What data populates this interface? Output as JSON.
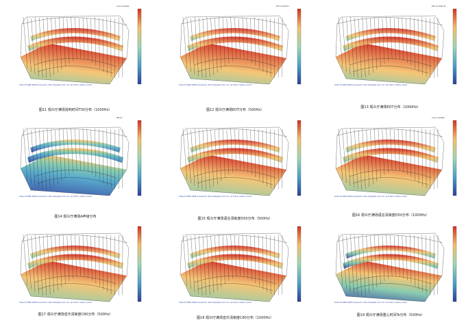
{
  "colors": {
    "credit": "#2b3da6",
    "wire": "#1a1a1a",
    "hot": "#d7301f",
    "warm": "#f4c16b",
    "mid": "#7fc8a9",
    "cool": "#4aa3c8",
    "cold": "#2c3f9e"
  },
  "panels": [
    {
      "caption": "图11 观众厅满场混响时间T30分布（1000Hz）",
      "legend_title": "Colour palette",
      "credit": "Odeon©1985-2008  Licensed to: SIAL Shanghai Arch. Sci. and Tech. Centre, China",
      "scheme": "warm-top"
    },
    {
      "caption": "图12 观众厅满场EDT分布（500Hz）",
      "legend_title": "EDT at 500 Hz",
      "credit": "Odeon©1985-2008  Licensed to: SIAL Shanghai Arch. Sci. and Tech. Centre, China",
      "scheme": "warm-top"
    },
    {
      "caption": "图13 观众厅满场EDT分布（1000Hz）",
      "legend_title": "EDT at 1000 Hz",
      "credit": "Odeon©1985-2008  Licensed to: SIAL Shanghai Arch. Sci. and Tech. Centre, China",
      "scheme": "warm-top"
    },
    {
      "caption": "图14 观众厅满场A声级分布",
      "legend_title": "SPL(A)",
      "credit": "Odeon©1985-2008  Licensed to: SIAL Shanghai Arch. Sci. and Tech. Centre, China",
      "scheme": "cold"
    },
    {
      "caption": "图15 观众厅满场语言清晰度D50分布（500Hz）",
      "legend_title": "",
      "credit": "Odeon©1985-2008  Licensed to: SIAL Shanghai Arch. Sci. and Tech. Centre, China",
      "scheme": "warm-front"
    },
    {
      "caption": "图16 观众厅满场语言清晰度D50分布（1000Hz）",
      "legend_title": "Colour palette",
      "credit": "Odeon©1985-2008  Licensed to: SIAL Shanghai Arch. Sci. and Tech. Centre, China",
      "scheme": "warm-front"
    },
    {
      "caption": "图17 观众厅满场音乐清晰度C80分布（500Hz）",
      "legend_title": "",
      "credit": "Odeon©1985-2008  Licensed to: SIAL Shanghai Arch. Sci. and Tech. Centre, China",
      "scheme": "warm-front"
    },
    {
      "caption": "图18 观众厅满场音乐清晰度C80分布（1000Hz）",
      "legend_title": "",
      "credit": "Odeon©1985-2008  Licensed to: SIAL Shanghai Arch. Sci. and Tech. Centre, China",
      "scheme": "warm-front"
    },
    {
      "caption": "图19 观众厅满场重心时间Ts分布（500Hz）",
      "legend_title": "",
      "credit": "Odeon©1985-2008  Licensed to: SIAL Shanghai Arch. Sci. and Tech. Centre, China",
      "scheme": "mixed"
    }
  ]
}
